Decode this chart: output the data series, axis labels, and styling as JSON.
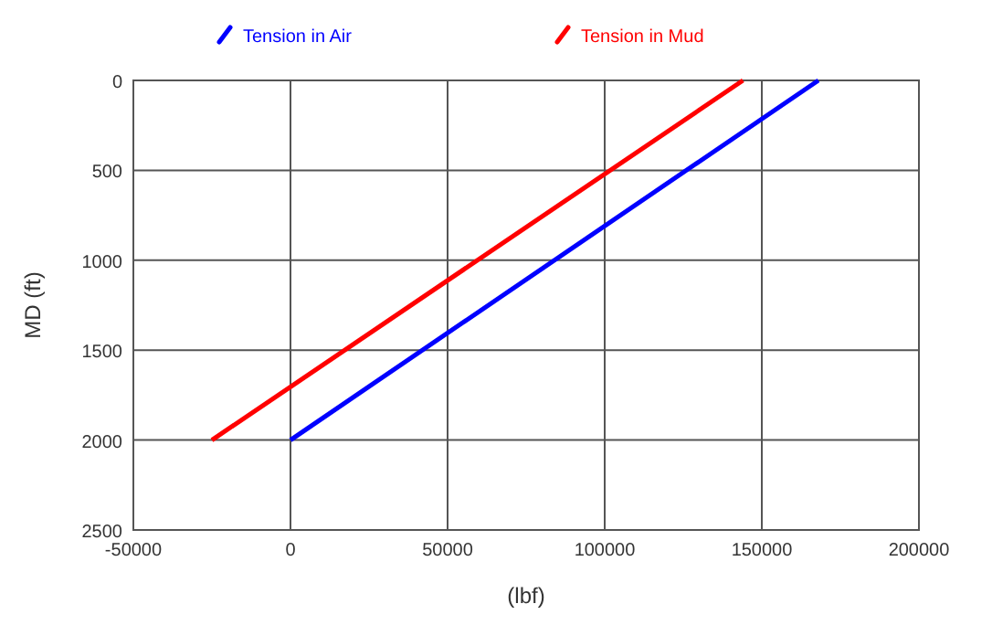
{
  "chart_data": {
    "type": "line",
    "xlabel": "(lbf)",
    "ylabel": "MD (ft)",
    "xlim": [
      -50000,
      200000
    ],
    "xticks": [
      -50000,
      0,
      50000,
      100000,
      150000,
      200000
    ],
    "ylim": [
      2500,
      0
    ],
    "yticks": [
      0,
      500,
      1000,
      1500,
      2000,
      2500
    ],
    "series": [
      {
        "name": "Tension in Air",
        "color": "#0000ff",
        "x": [
          0,
          168000
        ],
        "values": [
          2000,
          0
        ]
      },
      {
        "name": "Tension in Mud",
        "color": "#ff0000",
        "x": [
          -25000,
          144000
        ],
        "values": [
          2000,
          0
        ]
      }
    ],
    "grid": true,
    "legend": "top",
    "marker": "none",
    "line_style": "solid"
  }
}
